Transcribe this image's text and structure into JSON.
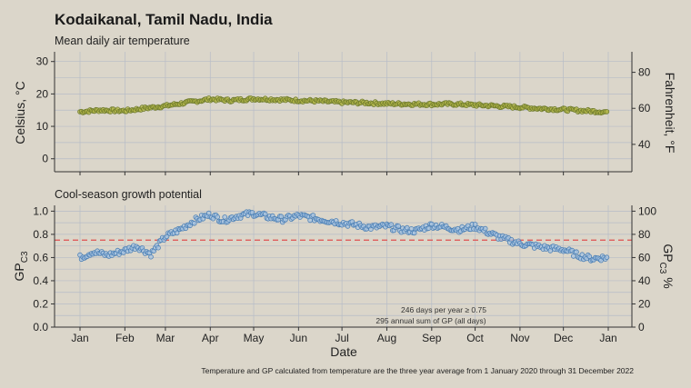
{
  "header": {
    "title": "Kodaikanal, Tamil Nadu, India",
    "caption": "Temperature and GP calculated from temperature are the three year average from 1 January 2020 through 31 December 2022"
  },
  "chart_data": [
    {
      "type": "scatter",
      "title": "Mean daily air temperature",
      "xlabel": "",
      "ylabel": "Celsius, °C",
      "ylabel_right": "Fahrenheit, °F",
      "ylim": [
        -4,
        33
      ],
      "yticks": [
        0,
        10,
        20,
        30
      ],
      "yticks_right": [
        40,
        60,
        80
      ],
      "x_tick_labels": [
        "Jan",
        "Feb",
        "Mar",
        "Apr",
        "May",
        "Jun",
        "Jul",
        "Aug",
        "Sep",
        "Oct",
        "Nov",
        "Dec",
        "Jan"
      ],
      "grid": true,
      "marker_fill": "#b5b84a",
      "marker_stroke": "#6d7a2c",
      "series": [
        {
          "x_day_of_year": [
            1,
            15,
            32,
            46,
            60,
            74,
            91,
            105,
            121,
            135,
            152,
            166,
            182,
            196,
            213,
            227,
            244,
            258,
            274,
            288,
            305,
            319,
            335,
            349,
            363
          ],
          "values": [
            14.5,
            15.0,
            14.8,
            15.6,
            16.3,
            17.3,
            18.4,
            18.0,
            18.5,
            18.3,
            18.0,
            17.8,
            17.4,
            17.3,
            17.0,
            16.9,
            16.8,
            16.9,
            16.6,
            16.3,
            15.9,
            15.5,
            15.2,
            14.8,
            14.5
          ]
        }
      ]
    },
    {
      "type": "scatter",
      "title": "Cool-season growth potential",
      "xlabel": "Date",
      "ylabel": "GP",
      "ylabel_sub": "C3",
      "ylabel_right": "GP",
      "ylabel_right_sub": "C3",
      "ylabel_right_suffix": " %",
      "ylim": [
        0,
        1.05
      ],
      "yticks": [
        0.0,
        0.2,
        0.4,
        0.6,
        0.8,
        1.0
      ],
      "yticks_right": [
        0,
        20,
        40,
        60,
        80,
        100
      ],
      "x_tick_labels": [
        "Jan",
        "Feb",
        "Mar",
        "Apr",
        "May",
        "Jun",
        "Jul",
        "Aug",
        "Sep",
        "Oct",
        "Nov",
        "Dec",
        "Jan"
      ],
      "grid": true,
      "threshold": 0.75,
      "threshold_color": "#e05050",
      "marker_fill": "#a9c4e0",
      "marker_stroke": "#4a7fb5",
      "annotations": [
        "246 days per year ≥ 0.75",
        "295 annual sum of GP (all days)"
      ],
      "series": [
        {
          "x_day_of_year": [
            1,
            10,
            20,
            32,
            40,
            50,
            60,
            70,
            80,
            91,
            100,
            110,
            121,
            131,
            141,
            152,
            162,
            172,
            182,
            192,
            202,
            213,
            223,
            233,
            244,
            254,
            264,
            274,
            284,
            294,
            305,
            315,
            325,
            335,
            345,
            355,
            363
          ],
          "values": [
            0.6,
            0.65,
            0.62,
            0.66,
            0.7,
            0.63,
            0.78,
            0.84,
            0.92,
            0.97,
            0.92,
            0.96,
            0.98,
            0.95,
            0.93,
            0.96,
            0.94,
            0.92,
            0.9,
            0.88,
            0.86,
            0.87,
            0.84,
            0.83,
            0.88,
            0.86,
            0.84,
            0.87,
            0.81,
            0.76,
            0.72,
            0.7,
            0.68,
            0.67,
            0.62,
            0.59,
            0.6
          ]
        }
      ]
    }
  ]
}
